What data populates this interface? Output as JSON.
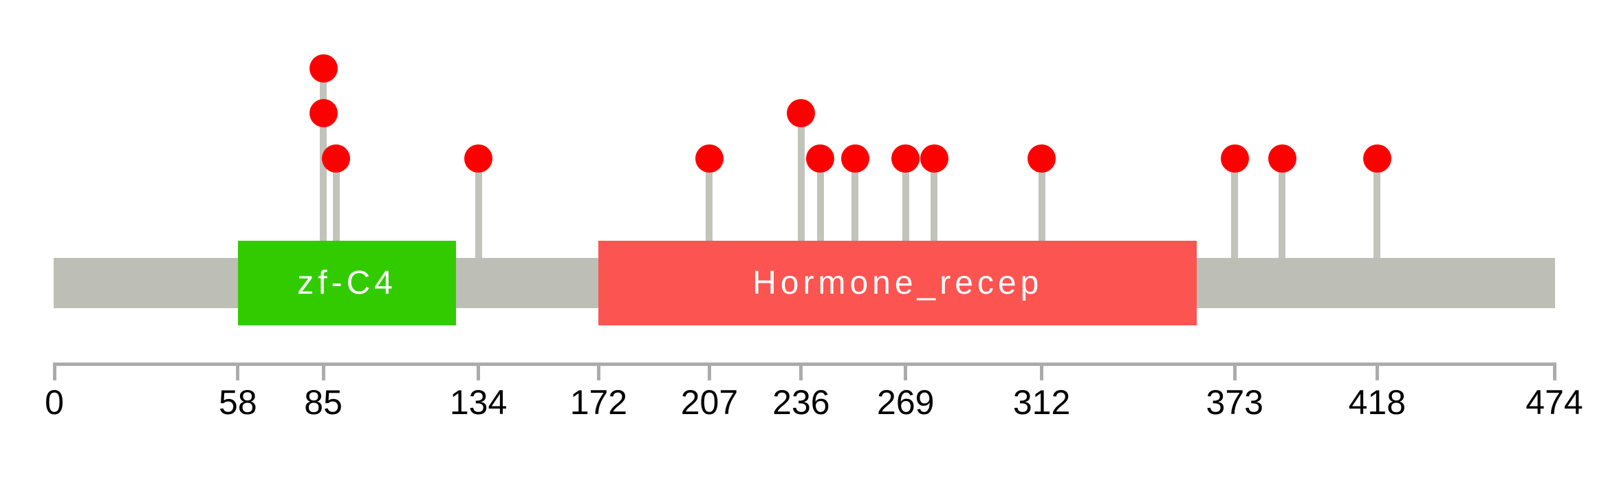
{
  "chart_data": {
    "type": "lollipop",
    "protein_length": 474,
    "axis": {
      "min": 0,
      "max": 474,
      "ticks": [
        0,
        58,
        85,
        134,
        172,
        207,
        236,
        269,
        312,
        373,
        418,
        474
      ]
    },
    "domains": [
      {
        "name": "zf-C4",
        "start": 58,
        "end": 127,
        "color": "#32CB00",
        "text_color": "#FFFFFF"
      },
      {
        "name": "Hormone_recep",
        "start": 172,
        "end": 361,
        "color": "#FC5450",
        "text_color": "#FFFFFF"
      }
    ],
    "mutations": [
      {
        "pos": 85,
        "stack": 3
      },
      {
        "pos": 85,
        "stack": 2
      },
      {
        "pos": 89,
        "stack": 1
      },
      {
        "pos": 134,
        "stack": 1
      },
      {
        "pos": 207,
        "stack": 1
      },
      {
        "pos": 236,
        "stack": 2
      },
      {
        "pos": 242,
        "stack": 1
      },
      {
        "pos": 253,
        "stack": 1
      },
      {
        "pos": 269,
        "stack": 1
      },
      {
        "pos": 278,
        "stack": 1
      },
      {
        "pos": 312,
        "stack": 1
      },
      {
        "pos": 373,
        "stack": 1
      },
      {
        "pos": 388,
        "stack": 1
      },
      {
        "pos": 418,
        "stack": 1
      }
    ],
    "colors": {
      "background": "#FFFFFF",
      "backbone": "#BDBEB5",
      "stick": "#C2C3BA",
      "circle": "#FF0000",
      "axis": "#ABABAB",
      "tick_label": "#000000"
    },
    "legend_position": "none",
    "grid": "off"
  }
}
